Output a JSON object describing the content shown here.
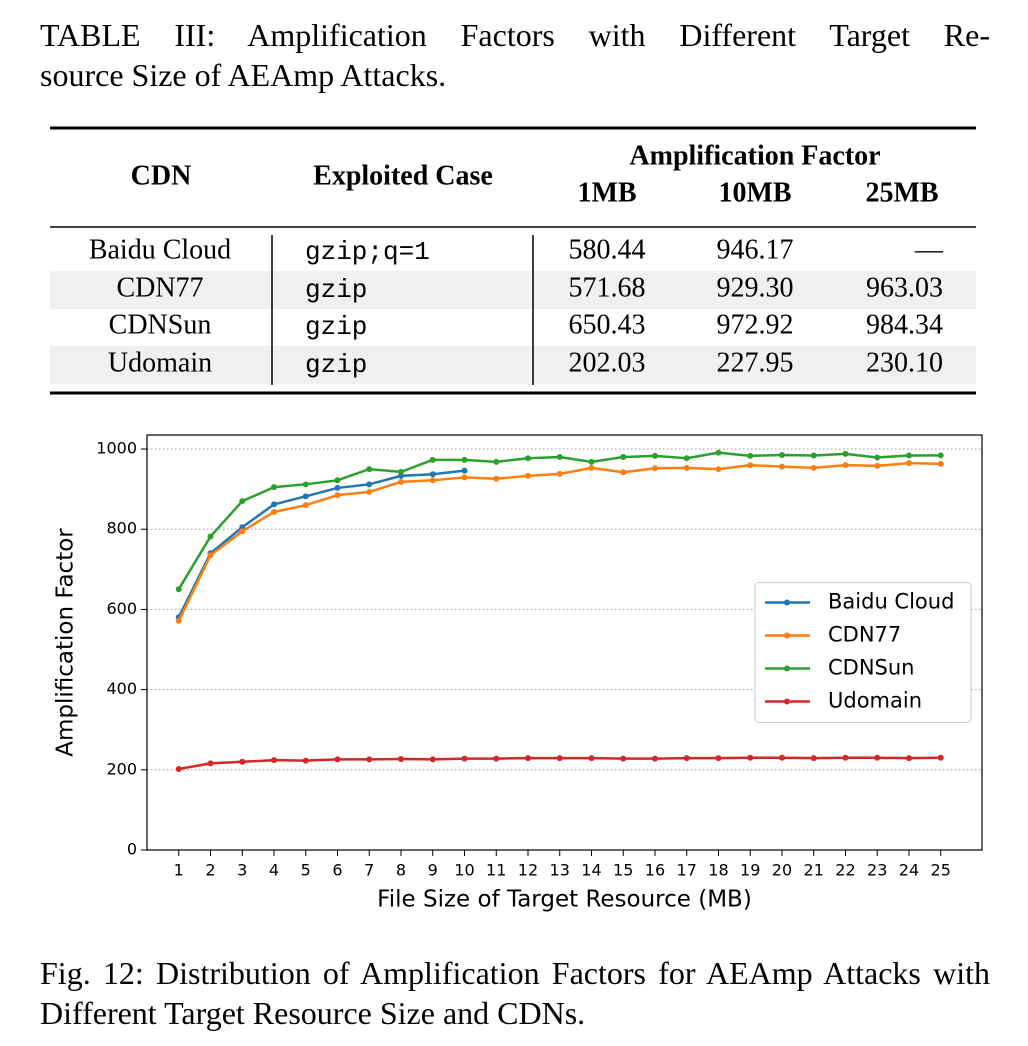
{
  "caption_lines": [
    "TABLE III: Amplification Factors with Different Target Re-",
    "source Size of AEAmp Attacks."
  ],
  "table": {
    "headers": {
      "cdn": "CDN",
      "case": "Exploited Case",
      "group": "Amplification Factor",
      "sizes": [
        "1MB",
        "10MB",
        "25MB"
      ]
    },
    "rows": [
      [
        "Baidu Cloud",
        "gzip;q=1",
        "580.44",
        "946.17",
        "—"
      ],
      [
        "CDN77",
        "gzip",
        "571.68",
        "929.30",
        "963.03"
      ],
      [
        "CDNSun",
        "gzip",
        "650.43",
        "972.92",
        "984.34"
      ],
      [
        "Udomain",
        "gzip",
        "202.03",
        "227.95",
        "230.10"
      ]
    ]
  },
  "chart_data": {
    "type": "line",
    "x_label": "File Size of Target Resource (MB)",
    "y_label": "Amplification Factor",
    "x": [
      1,
      2,
      3,
      4,
      5,
      6,
      7,
      8,
      9,
      10,
      11,
      12,
      13,
      14,
      15,
      16,
      17,
      18,
      19,
      20,
      21,
      22,
      23,
      24,
      25
    ],
    "series": [
      {
        "name": "Baidu Cloud",
        "color": "#1f77b4",
        "values": [
          580.44,
          740,
          805,
          862,
          882,
          903,
          912,
          933,
          937,
          946.17,
          null,
          null,
          null,
          null,
          null,
          null,
          null,
          null,
          null,
          null,
          null,
          null,
          null,
          null,
          null
        ]
      },
      {
        "name": "CDN77",
        "color": "#ff7f0e",
        "values": [
          571.68,
          735,
          795,
          843,
          860,
          885,
          893,
          918,
          922,
          929.3,
          926,
          933,
          938,
          953,
          942,
          952,
          953,
          950,
          960,
          956,
          953,
          960,
          958,
          965,
          963.03
        ]
      },
      {
        "name": "CDNSun",
        "color": "#2ca02c",
        "values": [
          650.43,
          782,
          870,
          905,
          912,
          922,
          950,
          943,
          973,
          972.92,
          968,
          977,
          980,
          968,
          980,
          983,
          977,
          991,
          983,
          985,
          984,
          988,
          979,
          984,
          984.34
        ]
      },
      {
        "name": "Udomain",
        "color": "#d62728",
        "values": [
          202.03,
          216,
          220,
          224,
          223,
          226,
          226,
          227,
          226,
          227.95,
          228,
          229,
          229,
          229,
          228,
          228,
          229,
          229,
          230,
          230,
          229,
          230,
          230,
          229,
          230.1
        ]
      }
    ],
    "xlim": [
      0,
      26.3
    ],
    "ylim": [
      0,
      1035
    ],
    "xticks": [
      1,
      2,
      3,
      4,
      5,
      6,
      7,
      8,
      9,
      10,
      11,
      12,
      13,
      14,
      15,
      16,
      17,
      18,
      19,
      20,
      21,
      22,
      23,
      24,
      25
    ],
    "yticks": [
      0,
      200,
      400,
      600,
      800,
      1000
    ],
    "grid": true,
    "legend": "right"
  },
  "figure_caption": "Fig. 12: Distribution of Amplification Factors for AEAmp Attacks with Different Target Resource Size and CDNs."
}
